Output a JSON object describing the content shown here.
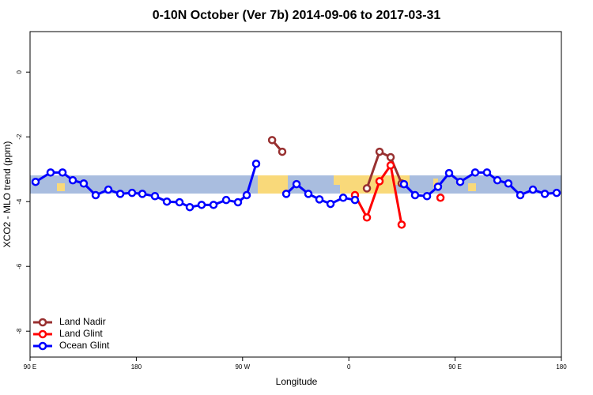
{
  "chart_data": {
    "type": "line",
    "title": "0-10N October (Ver 7b)   2014-09-06 to 2017-03-31",
    "x_label": "Longitude",
    "y_label": "XCO2 - MLO trend (ppm)",
    "xlim": [
      90,
      540
    ],
    "ylim": [
      -8.8,
      1.25
    ],
    "xticks": [
      {
        "value": 90,
        "label": "90 E"
      },
      180,
      {
        "value": 270,
        "label": "90 W"
      },
      {
        "value": 360,
        "label": "0"
      },
      {
        "value": 450,
        "label": "90 E"
      },
      {
        "value": 540,
        "label": "180"
      }
    ],
    "yticks": [
      0,
      -2,
      -4,
      -6,
      -8
    ],
    "legend": "bottom-left",
    "series": [
      {
        "name": "Land Nadir",
        "color": "#983030",
        "x": [
          295,
          303.6,
          null,
          375.3,
          386,
          395.4,
          404.7
        ],
        "values": [
          -2.1,
          -2.46,
          null,
          -3.59,
          -2.46,
          -2.63,
          -3.44
        ]
      },
      {
        "name": "Land Glint",
        "color": "#ff0000",
        "x": [
          365.2,
          375.3,
          386,
          395.4,
          404.7,
          null,
          437.6
        ],
        "values": [
          -3.8,
          -4.49,
          -3.37,
          -2.88,
          -4.71,
          null,
          -3.88
        ]
      },
      {
        "name": "Ocean Glint",
        "color": "#0000ff",
        "x": [
          94.7,
          107.4,
          117.5,
          126.2,
          135.5,
          145.6,
          156.3,
          166.4,
          176.4,
          185.1,
          195.8,
          205.9,
          216.6,
          225.3,
          235.3,
          245.4,
          256.1,
          266.1,
          273.5,
          281.5,
          null,
          307,
          315.7,
          325.7,
          335.1,
          344.5,
          355.2,
          365.2,
          null,
          406.7,
          416.1,
          426.2,
          435.5,
          444.9,
          454.3,
          467,
          477,
          485.8,
          495.1,
          505.2,
          515.9,
          526,
          536
        ],
        "values": [
          -3.39,
          -3.1,
          -3.1,
          -3.34,
          -3.44,
          -3.8,
          -3.63,
          -3.76,
          -3.73,
          -3.76,
          -3.83,
          -4.0,
          -4.02,
          -4.17,
          -4.1,
          -4.1,
          -3.95,
          -4.02,
          -3.8,
          -2.83,
          null,
          -3.76,
          -3.46,
          -3.76,
          -3.93,
          -4.07,
          -3.88,
          -3.95,
          null,
          -3.46,
          -3.8,
          -3.83,
          -3.54,
          -3.12,
          -3.39,
          -3.1,
          -3.1,
          -3.34,
          -3.44,
          -3.8,
          -3.63,
          -3.76,
          -3.73
        ]
      }
    ]
  }
}
